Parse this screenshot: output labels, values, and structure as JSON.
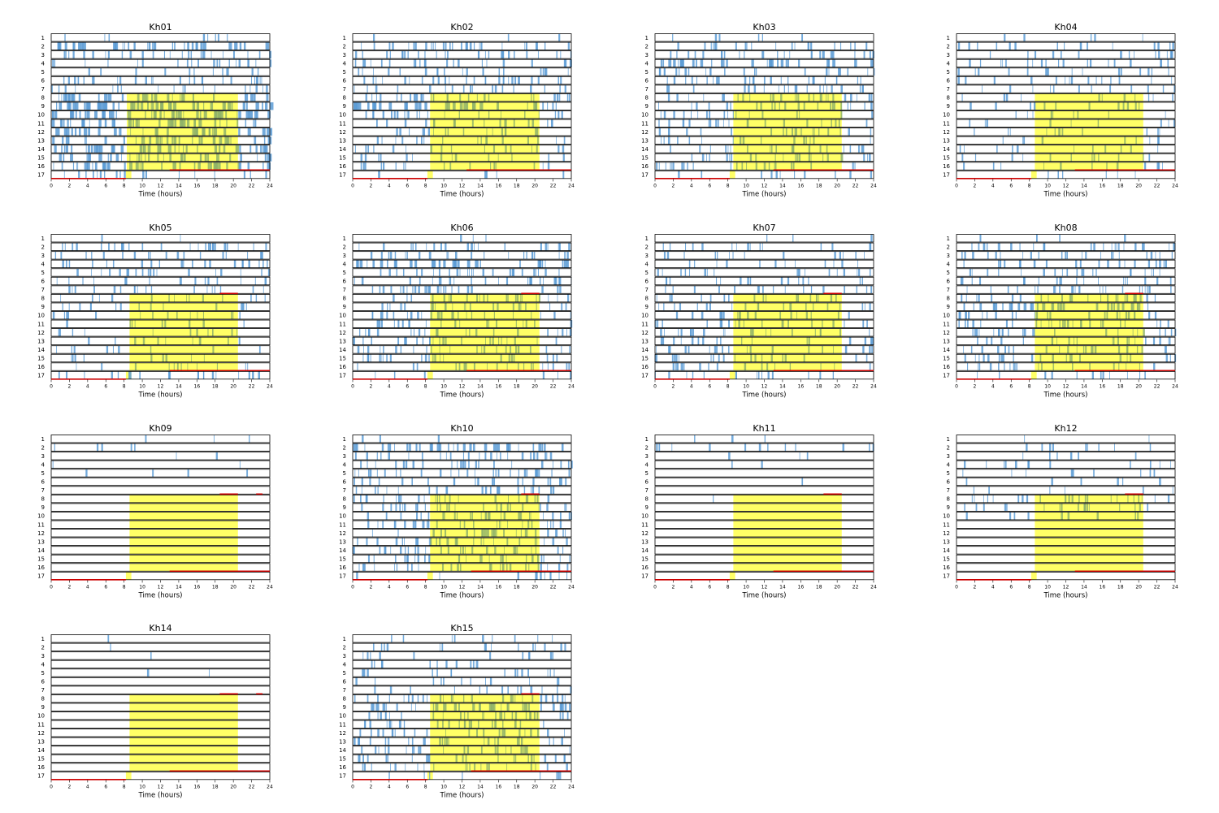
{
  "chart_data": {
    "type": "event-raster",
    "layout": {
      "rows": 4,
      "cols": 4
    },
    "xlabel": "Time (hours)",
    "xlim": [
      0,
      24
    ],
    "xticks": [
      0,
      2,
      4,
      6,
      8,
      10,
      12,
      14,
      16,
      18,
      20,
      22,
      24
    ],
    "row_labels": [
      "1",
      "2",
      "3",
      "4",
      "5",
      "6",
      "7",
      "8",
      "9",
      "10",
      "11",
      "12",
      "13",
      "14",
      "15",
      "16",
      "17"
    ],
    "colors": {
      "events": "#5b9bd5",
      "highlight": "#ffff66",
      "highlight_overlap": "#8fb36a",
      "line": "#cc0000",
      "axis": "#000000"
    },
    "highlight_rows": {
      "start_row": 8,
      "end_row": 17
    },
    "panels": [
      {
        "title": "Kh01",
        "highlight": {
          "x0": 8.3,
          "x1": 20.5
        },
        "red_lines": [
          {
            "row": 16,
            "x0": 13.0,
            "x1": 24.0
          },
          {
            "row": 17,
            "x0": 0.0,
            "x1": 8.2
          }
        ],
        "density": [
          0.15,
          0.55,
          0.45,
          0.35,
          0.2,
          0.5,
          0.3,
          0.55,
          0.9,
          0.85,
          0.65,
          0.6,
          0.55,
          0.7,
          0.6,
          0.7,
          0.3
        ]
      },
      {
        "title": "Kh02",
        "highlight": {
          "x0": 8.5,
          "x1": 20.5
        },
        "red_lines": [
          {
            "row": 16,
            "x0": 12.5,
            "x1": 24.0
          },
          {
            "row": 17,
            "x0": 0.0,
            "x1": 8.2
          }
        ],
        "density": [
          0.05,
          0.5,
          0.5,
          0.4,
          0.35,
          0.45,
          0.35,
          0.5,
          0.55,
          0.4,
          0.35,
          0.3,
          0.3,
          0.3,
          0.25,
          0.3,
          0.1
        ]
      },
      {
        "title": "Kh03",
        "highlight": {
          "x0": 8.6,
          "x1": 20.5
        },
        "red_lines": [
          {
            "row": 16,
            "x0": 13.0,
            "x1": 24.0
          },
          {
            "row": 17,
            "x0": 0.0,
            "x1": 8.2
          }
        ],
        "density": [
          0.1,
          0.35,
          0.45,
          0.55,
          0.4,
          0.45,
          0.35,
          0.45,
          0.4,
          0.3,
          0.35,
          0.35,
          0.3,
          0.35,
          0.4,
          0.45,
          0.2
        ]
      },
      {
        "title": "Kh04",
        "highlight": {
          "x0": 8.6,
          "x1": 20.5
        },
        "red_lines": [
          {
            "row": 16,
            "x0": 13.0,
            "x1": 24.0
          },
          {
            "row": 17,
            "x0": 0.0,
            "x1": 8.2
          }
        ],
        "density": [
          0.08,
          0.3,
          0.25,
          0.35,
          0.25,
          0.25,
          0.2,
          0.2,
          0.2,
          0.15,
          0.15,
          0.2,
          0.15,
          0.2,
          0.2,
          0.2,
          0.1
        ]
      },
      {
        "title": "Kh05",
        "highlight": {
          "x0": 8.6,
          "x1": 20.5
        },
        "red_lines": [
          {
            "row": 7,
            "x0": 18.5,
            "x1": 20.5
          },
          {
            "row": 16,
            "x0": 13.0,
            "x1": 24.0
          },
          {
            "row": 17,
            "x0": 0.0,
            "x1": 8.2
          }
        ],
        "density": [
          0.03,
          0.45,
          0.3,
          0.35,
          0.35,
          0.3,
          0.3,
          0.25,
          0.25,
          0.25,
          0.15,
          0.2,
          0.2,
          0.15,
          0.15,
          0.2,
          0.35
        ]
      },
      {
        "title": "Kh06",
        "highlight": {
          "x0": 8.5,
          "x1": 20.5
        },
        "red_lines": [
          {
            "row": 7,
            "x0": 18.5,
            "x1": 20.5
          },
          {
            "row": 16,
            "x0": 12.5,
            "x1": 24.0
          },
          {
            "row": 17,
            "x0": 0.0,
            "x1": 8.2
          }
        ],
        "density": [
          0.05,
          0.4,
          0.4,
          0.55,
          0.45,
          0.45,
          0.45,
          0.4,
          0.45,
          0.45,
          0.35,
          0.4,
          0.4,
          0.4,
          0.4,
          0.35,
          0.1
        ]
      },
      {
        "title": "Kh07",
        "highlight": {
          "x0": 8.6,
          "x1": 20.5
        },
        "red_lines": [
          {
            "row": 7,
            "x0": 18.5,
            "x1": 20.5
          },
          {
            "row": 16,
            "x0": 13.0,
            "x1": 24.0
          },
          {
            "row": 17,
            "x0": 0.0,
            "x1": 8.2
          }
        ],
        "density": [
          0.05,
          0.25,
          0.25,
          0.2,
          0.3,
          0.25,
          0.3,
          0.3,
          0.35,
          0.3,
          0.35,
          0.35,
          0.3,
          0.35,
          0.35,
          0.3,
          0.25
        ]
      },
      {
        "title": "Kh08",
        "highlight": {
          "x0": 8.6,
          "x1": 20.5
        },
        "red_lines": [
          {
            "row": 7,
            "x0": 18.5,
            "x1": 20.5
          },
          {
            "row": 16,
            "x0": 13.0,
            "x1": 24.0
          },
          {
            "row": 17,
            "x0": 0.0,
            "x1": 8.2
          }
        ],
        "density": [
          0.08,
          0.45,
          0.4,
          0.35,
          0.35,
          0.35,
          0.4,
          0.45,
          0.55,
          0.45,
          0.45,
          0.4,
          0.4,
          0.4,
          0.4,
          0.35,
          0.2
        ]
      },
      {
        "title": "Kh09",
        "highlight": {
          "x0": 8.6,
          "x1": 20.5
        },
        "red_lines": [
          {
            "row": 7,
            "x0": 18.5,
            "x1": 20.5
          },
          {
            "row": 7,
            "x0": 22.5,
            "x1": 23.2
          },
          {
            "row": 16,
            "x0": 13.0,
            "x1": 24.0
          },
          {
            "row": 17,
            "x0": 0.0,
            "x1": 8.2
          }
        ],
        "density": [
          0.05,
          0.08,
          0.04,
          0.03,
          0.06,
          0.0,
          0.0,
          0.0,
          0.0,
          0.0,
          0.0,
          0.0,
          0.0,
          0.0,
          0.0,
          0.0,
          0.0
        ]
      },
      {
        "title": "Kh10",
        "highlight": {
          "x0": 8.5,
          "x1": 20.5
        },
        "red_lines": [
          {
            "row": 7,
            "x0": 18.5,
            "x1": 20.5
          },
          {
            "row": 16,
            "x0": 13.0,
            "x1": 24.0
          },
          {
            "row": 17,
            "x0": 0.0,
            "x1": 8.2
          }
        ],
        "density": [
          0.05,
          0.6,
          0.45,
          0.4,
          0.45,
          0.4,
          0.4,
          0.45,
          0.45,
          0.5,
          0.45,
          0.5,
          0.5,
          0.5,
          0.5,
          0.5,
          0.2
        ]
      },
      {
        "title": "Kh11",
        "highlight": {
          "x0": 8.6,
          "x1": 20.5
        },
        "red_lines": [
          {
            "row": 7,
            "x0": 18.5,
            "x1": 20.5
          },
          {
            "row": 16,
            "x0": 13.0,
            "x1": 24.0
          },
          {
            "row": 17,
            "x0": 0.0,
            "x1": 8.2
          }
        ],
        "density": [
          0.05,
          0.2,
          0.05,
          0.04,
          0.0,
          0.02,
          0.0,
          0.02,
          0.0,
          0.0,
          0.0,
          0.0,
          0.0,
          0.0,
          0.0,
          0.0,
          0.0
        ]
      },
      {
        "title": "Kh12",
        "highlight": {
          "x0": 8.6,
          "x1": 20.5
        },
        "red_lines": [
          {
            "row": 7,
            "x0": 18.5,
            "x1": 20.5
          },
          {
            "row": 16,
            "x0": 13.0,
            "x1": 24.0
          },
          {
            "row": 17,
            "x0": 0.0,
            "x1": 8.2
          }
        ],
        "density": [
          0.03,
          0.15,
          0.1,
          0.2,
          0.15,
          0.1,
          0.1,
          0.4,
          0.3,
          0.15,
          0.0,
          0.0,
          0.0,
          0.0,
          0.0,
          0.0,
          0.0
        ]
      },
      {
        "title": "Kh14",
        "highlight": {
          "x0": 8.6,
          "x1": 20.5
        },
        "red_lines": [
          {
            "row": 7,
            "x0": 18.5,
            "x1": 20.5
          },
          {
            "row": 7,
            "x0": 22.5,
            "x1": 23.2
          },
          {
            "row": 16,
            "x0": 13.0,
            "x1": 24.0
          },
          {
            "row": 17,
            "x0": 0.0,
            "x1": 8.2
          }
        ],
        "density": [
          0.02,
          0.02,
          0.02,
          0.0,
          0.04,
          0.0,
          0.0,
          0.0,
          0.0,
          0.0,
          0.0,
          0.0,
          0.0,
          0.0,
          0.0,
          0.0,
          0.0
        ]
      },
      {
        "title": "Kh15",
        "highlight": {
          "x0": 8.5,
          "x1": 20.5
        },
        "red_lines": [
          {
            "row": 7,
            "x0": 18.5,
            "x1": 20.5
          },
          {
            "row": 16,
            "x0": 13.0,
            "x1": 24.0
          },
          {
            "row": 17,
            "x0": 0.0,
            "x1": 8.2
          }
        ],
        "density": [
          0.15,
          0.25,
          0.2,
          0.2,
          0.25,
          0.2,
          0.25,
          0.5,
          0.55,
          0.5,
          0.45,
          0.45,
          0.45,
          0.4,
          0.4,
          0.35,
          0.15
        ]
      }
    ]
  }
}
